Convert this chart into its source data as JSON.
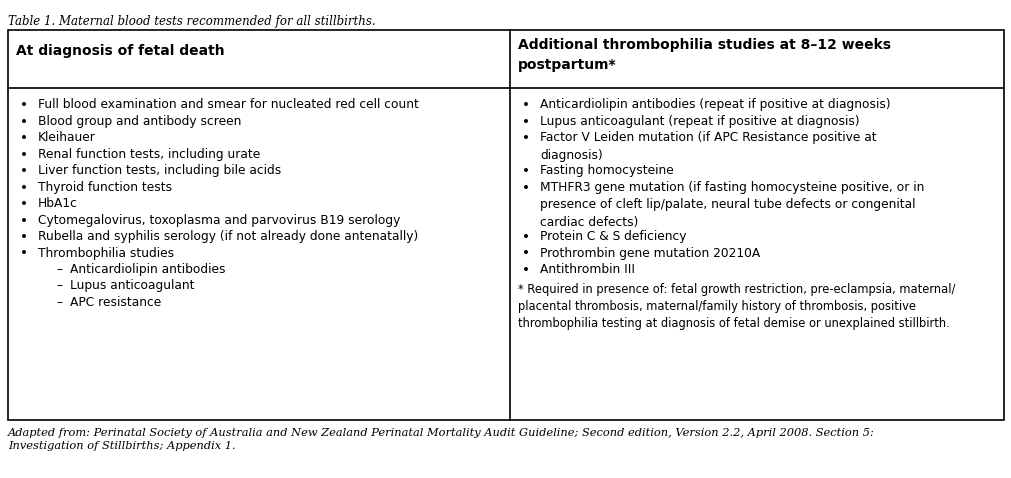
{
  "title": "Table 1. Maternal blood tests recommended for all stillbirths.",
  "col1_header": "At diagnosis of fetal death",
  "col2_header": "Additional thrombophilia studies at 8–12 weeks\npostpartum*",
  "col1_items": [
    {
      "type": "bullet",
      "indent": 0,
      "text": "Full blood examination and smear for nucleated red cell count"
    },
    {
      "type": "bullet",
      "indent": 0,
      "text": "Blood group and antibody screen"
    },
    {
      "type": "bullet",
      "indent": 0,
      "text": "Kleihauer"
    },
    {
      "type": "bullet",
      "indent": 0,
      "text": "Renal function tests, including urate"
    },
    {
      "type": "bullet",
      "indent": 0,
      "text": "Liver function tests, including bile acids"
    },
    {
      "type": "bullet",
      "indent": 0,
      "text": "Thyroid function tests"
    },
    {
      "type": "bullet",
      "indent": 0,
      "text": "HbA1c"
    },
    {
      "type": "bullet",
      "indent": 0,
      "text": "Cytomegalovirus, toxoplasma and parvovirus B19 serology"
    },
    {
      "type": "bullet",
      "indent": 0,
      "text": "Rubella and syphilis serology (if not already done antenatally)"
    },
    {
      "type": "bullet",
      "indent": 0,
      "text": "Thrombophilia studies"
    },
    {
      "type": "dash",
      "indent": 1,
      "text": "Anticardiolipin antibodies"
    },
    {
      "type": "dash",
      "indent": 1,
      "text": "Lupus anticoagulant"
    },
    {
      "type": "dash",
      "indent": 1,
      "text": "APC resistance"
    }
  ],
  "col2_items": [
    {
      "type": "bullet",
      "text": "Anticardiolipin antibodies (repeat if positive at diagnosis)",
      "lines": 1
    },
    {
      "type": "bullet",
      "text": "Lupus anticoagulant (repeat if positive at diagnosis)",
      "lines": 1
    },
    {
      "type": "bullet",
      "text": "Factor V Leiden mutation (if APC Resistance positive at\ndiagnosis)",
      "lines": 2
    },
    {
      "type": "bullet",
      "text": "Fasting homocysteine",
      "lines": 1
    },
    {
      "type": "bullet",
      "text": "MTHFR3 gene mutation (if fasting homocysteine positive, or in\npresence of cleft lip/palate, neural tube defects or congenital\ncardiac defects)",
      "lines": 3
    },
    {
      "type": "bullet",
      "text": "Protein C & S deficiency",
      "lines": 1
    },
    {
      "type": "bullet",
      "text": "Prothrombin gene mutation 20210A",
      "lines": 1
    },
    {
      "type": "bullet",
      "text": "Antithrombin III",
      "lines": 1
    },
    {
      "type": "footnote",
      "text": "* Required in presence of: fetal growth restriction, pre-eclampsia, maternal/\nplacental thrombosis, maternal/family history of thrombosis, positive\nthrombophilia testing at diagnosis of fetal demise or unexplained stillbirth.",
      "lines": 3
    }
  ],
  "footer": "Adapted from: Perinatal Society of Australia and New Zealand Perinatal Mortality Audit Guideline; Second edition, Version 2.2, April 2008. Section 5:\nInvestigation of Stillbirths; Appendix 1.",
  "bg": "#ffffff",
  "border": "#000000",
  "text": "#000000",
  "figsize": [
    10.12,
    4.78
  ],
  "dpi": 100
}
